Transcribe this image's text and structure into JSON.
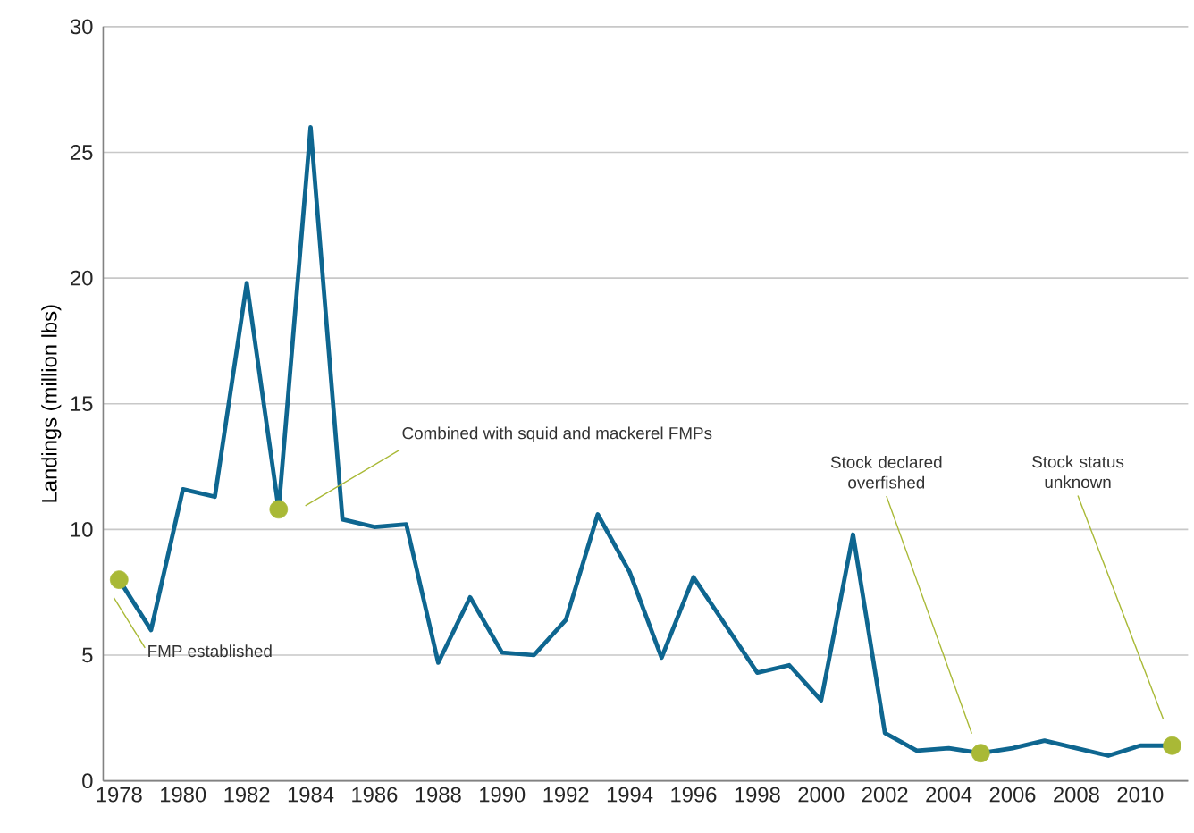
{
  "chart_data": {
    "type": "line",
    "ylabel": "Landings (million lbs)",
    "categories": [
      "1978",
      null,
      "1980",
      null,
      "1982",
      null,
      "1984",
      null,
      "1986",
      null,
      "1988",
      null,
      "1990",
      null,
      "1992",
      null,
      "1994",
      null,
      "1996",
      null,
      "1998",
      null,
      "2000",
      null,
      "2002",
      null,
      "2004",
      null,
      "2006",
      null,
      "2008",
      null,
      "2010",
      null
    ],
    "series": [
      {
        "color": "#0e6690",
        "values": [
          8.0,
          6.0,
          11.6,
          11.3,
          19.8,
          10.8,
          26.0,
          10.4,
          10.1,
          10.2,
          4.7,
          7.3,
          5.1,
          5.0,
          6.4,
          10.6,
          8.3,
          4.9,
          8.1,
          6.2,
          4.3,
          4.6,
          3.2,
          9.8,
          1.9,
          1.2,
          1.3,
          1.1,
          1.3,
          1.6,
          1.3,
          1.0,
          1.4,
          1.4
        ]
      },
      {
        "type": "scatter",
        "marker": "circle",
        "color": "#a9b936",
        "values": [
          8.0,
          null,
          null,
          null,
          null,
          10.8,
          null,
          null,
          null,
          null,
          null,
          null,
          null,
          null,
          null,
          null,
          null,
          null,
          null,
          null,
          null,
          null,
          null,
          null,
          null,
          null,
          null,
          1.1,
          null,
          null,
          null,
          null,
          null,
          1.4
        ]
      }
    ],
    "ylim": [
      0,
      30
    ],
    "yticks": [
      0,
      5,
      10,
      15,
      20,
      25,
      30
    ],
    "grid": "y",
    "line_style": "solid",
    "annotations": [
      "FMP established",
      "Combined with squid and mackerel FMPs",
      "Stock declared overfished",
      "Stock status unknown"
    ]
  }
}
